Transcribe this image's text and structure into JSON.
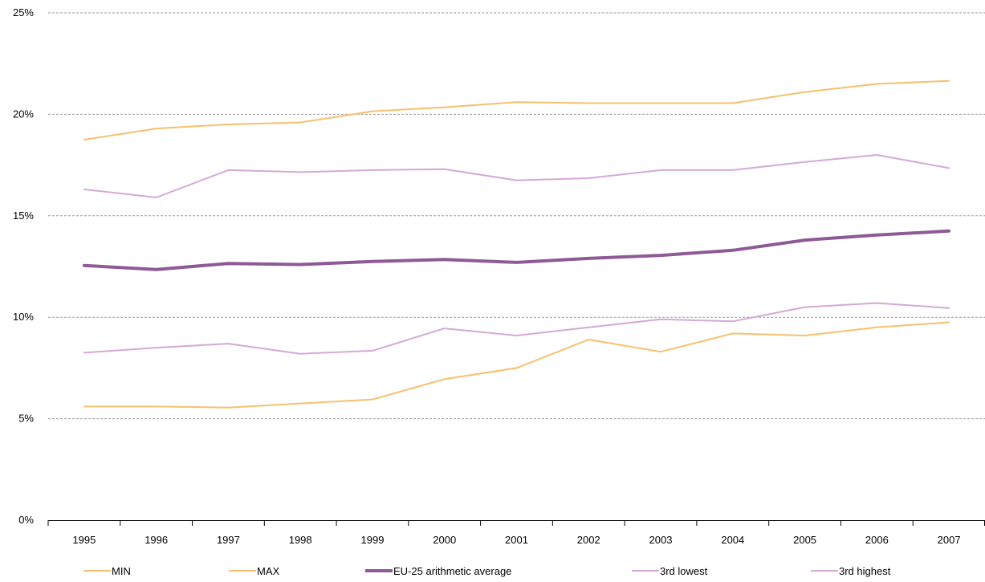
{
  "chart_data": {
    "type": "line",
    "title": "",
    "xlabel": "",
    "ylabel": "",
    "x": [
      "1995",
      "1996",
      "1997",
      "1998",
      "1999",
      "2000",
      "2001",
      "2002",
      "2003",
      "2004",
      "2005",
      "2006",
      "2007"
    ],
    "ylim": [
      0,
      25
    ],
    "yticks": [
      0,
      5,
      10,
      15,
      20,
      25
    ],
    "ytick_labels": [
      "0%",
      "5%",
      "10%",
      "15%",
      "20%",
      "25%"
    ],
    "grid": "horizontal dashed",
    "legend_position": "bottom",
    "series": [
      {
        "name": "MIN",
        "color": "#f5c16e",
        "width": 2,
        "values": [
          5.6,
          5.6,
          5.55,
          5.75,
          5.95,
          6.95,
          7.5,
          8.9,
          8.3,
          9.2,
          9.1,
          9.5,
          9.75
        ]
      },
      {
        "name": "MAX",
        "color": "#f5c16e",
        "width": 2,
        "values": [
          18.75,
          19.3,
          19.5,
          19.6,
          20.15,
          20.35,
          20.6,
          20.55,
          20.55,
          20.55,
          21.1,
          21.5,
          21.65
        ]
      },
      {
        "name": "EU-25 arithmetic average",
        "color": "#8e5a96",
        "width": 4,
        "values": [
          12.55,
          12.35,
          12.65,
          12.6,
          12.75,
          12.85,
          12.7,
          12.9,
          13.05,
          13.3,
          13.8,
          14.05,
          14.25
        ]
      },
      {
        "name": "3rd lowest",
        "color": "#d4a9d6",
        "width": 2,
        "values": [
          8.25,
          8.5,
          8.7,
          8.2,
          8.35,
          9.45,
          9.1,
          9.5,
          9.9,
          9.8,
          10.5,
          10.7,
          10.45
        ]
      },
      {
        "name": "3rd highest",
        "color": "#d4a9d6",
        "width": 2,
        "values": [
          16.3,
          15.9,
          17.25,
          17.15,
          17.25,
          17.3,
          16.75,
          16.85,
          17.25,
          17.25,
          17.65,
          18.0,
          17.35
        ]
      }
    ]
  }
}
